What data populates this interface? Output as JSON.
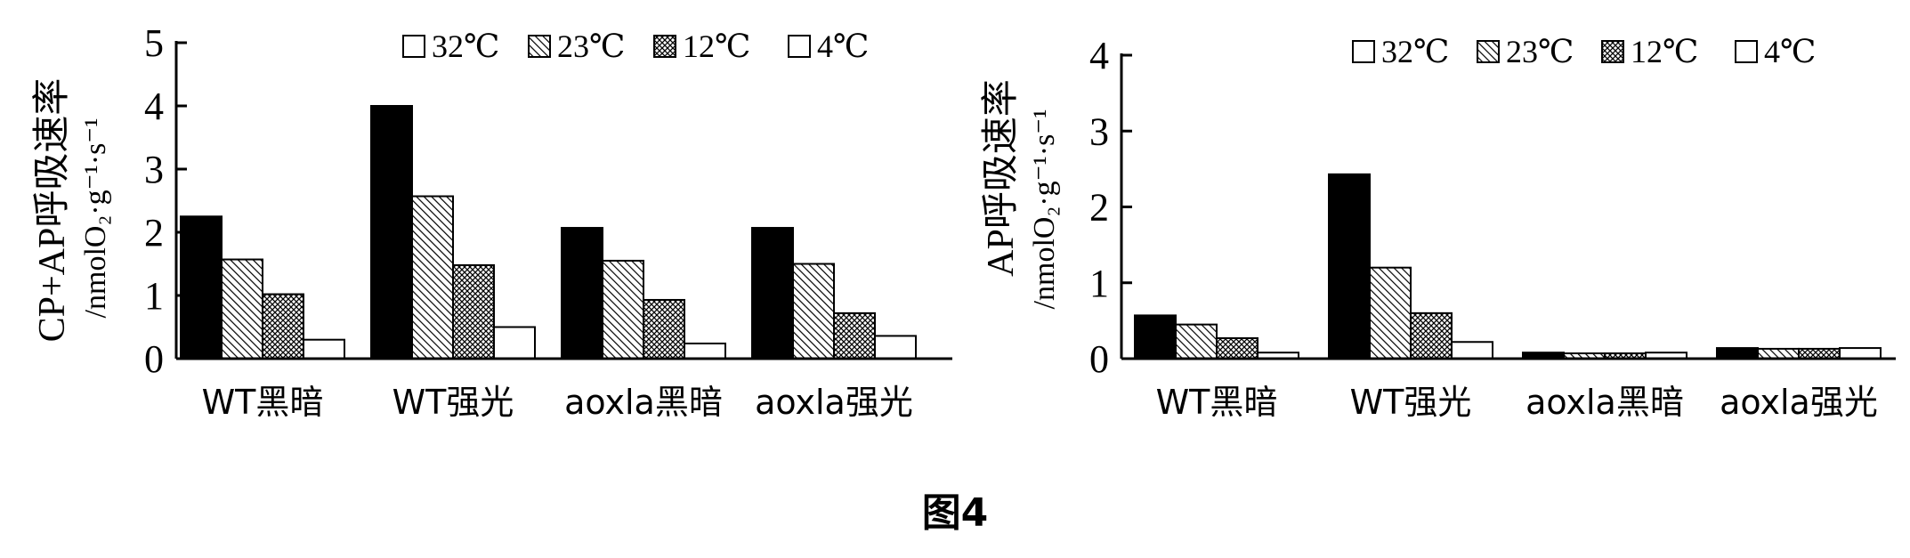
{
  "figure_caption": "图4",
  "colors": {
    "bar_stroke": "#000000",
    "axis": "#000000",
    "fill_32": "#000000",
    "fill_4": "#ffffff"
  },
  "chart_data": [
    {
      "type": "bar",
      "ylabel": "CP+AP呼吸速率",
      "yunit": "/nmolO₂·g⁻¹·s⁻¹",
      "ylim": [
        0,
        5
      ],
      "yticks": [
        "0",
        "1",
        "2",
        "3",
        "4",
        "5"
      ],
      "legend_position": "top",
      "categories": [
        "WT黑暗",
        "WT强光",
        "aoxla黑暗",
        "aoxla强光"
      ],
      "series": [
        {
          "name": "32℃",
          "pattern": "solid-black",
          "values": [
            2.25,
            4.0,
            2.07,
            2.07
          ]
        },
        {
          "name": "23℃",
          "pattern": "diagonal-hatch",
          "values": [
            1.57,
            2.57,
            1.55,
            1.5
          ]
        },
        {
          "name": "12℃",
          "pattern": "cross-hatch",
          "values": [
            1.02,
            1.48,
            0.93,
            0.72
          ]
        },
        {
          "name": "4℃",
          "pattern": "white",
          "values": [
            0.3,
            0.5,
            0.24,
            0.36
          ]
        }
      ]
    },
    {
      "type": "bar",
      "ylabel": "AP呼吸速率",
      "yunit": "/nmolO₂·g⁻¹·s⁻¹",
      "ylim": [
        0,
        4
      ],
      "yticks": [
        "0",
        "1",
        "2",
        "3",
        "4"
      ],
      "legend_position": "top",
      "categories": [
        "WT黑暗",
        "WT强光",
        "aoxla黑暗",
        "aoxla强光"
      ],
      "series": [
        {
          "name": "32℃",
          "pattern": "solid-black",
          "values": [
            0.57,
            2.43,
            0.08,
            0.14
          ]
        },
        {
          "name": "23℃",
          "pattern": "diagonal-hatch",
          "values": [
            0.45,
            1.2,
            0.07,
            0.13
          ]
        },
        {
          "name": "12℃",
          "pattern": "cross-hatch",
          "values": [
            0.27,
            0.6,
            0.07,
            0.13
          ]
        },
        {
          "name": "4℃",
          "pattern": "white",
          "values": [
            0.08,
            0.22,
            0.08,
            0.14
          ]
        }
      ]
    }
  ]
}
